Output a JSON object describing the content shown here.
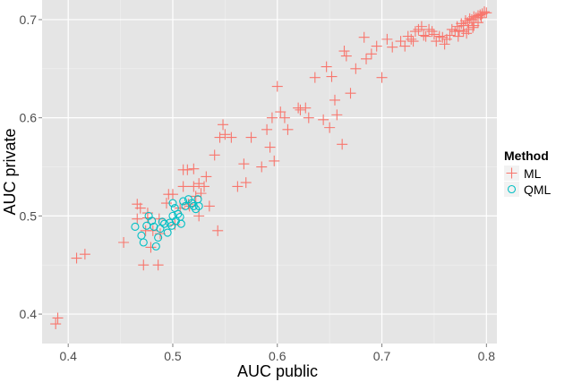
{
  "chart_data": {
    "type": "scatter",
    "xlabel": "AUC public",
    "ylabel": "AUC private",
    "xlim": [
      0.375,
      0.81
    ],
    "ylim": [
      0.37,
      0.72
    ],
    "x_ticks": [
      0.4,
      0.5,
      0.6,
      0.7,
      0.8
    ],
    "x_tick_labels": [
      "0.4",
      "0.5",
      "0.6",
      "0.7",
      "0.8"
    ],
    "y_ticks": [
      0.4,
      0.5,
      0.6,
      0.7
    ],
    "y_tick_labels": [
      "0.4",
      "0.5",
      "0.6",
      "0.7"
    ],
    "grid": true,
    "legend": {
      "title": "Method",
      "position": "right"
    },
    "series": [
      {
        "name": "ML",
        "marker": "plus",
        "color": "#F8766D",
        "points": [
          [
            0.388,
            0.39
          ],
          [
            0.39,
            0.396
          ],
          [
            0.408,
            0.457
          ],
          [
            0.416,
            0.461
          ],
          [
            0.453,
            0.473
          ],
          [
            0.466,
            0.497
          ],
          [
            0.466,
            0.512
          ],
          [
            0.469,
            0.508
          ],
          [
            0.472,
            0.45
          ],
          [
            0.474,
            0.485
          ],
          [
            0.476,
            0.503
          ],
          [
            0.476,
            0.498
          ],
          [
            0.479,
            0.468
          ],
          [
            0.481,
            0.485
          ],
          [
            0.486,
            0.45
          ],
          [
            0.487,
            0.497
          ],
          [
            0.488,
            0.482
          ],
          [
            0.494,
            0.513
          ],
          [
            0.496,
            0.522
          ],
          [
            0.5,
            0.522
          ],
          [
            0.502,
            0.491
          ],
          [
            0.507,
            0.508
          ],
          [
            0.51,
            0.547
          ],
          [
            0.51,
            0.53
          ],
          [
            0.514,
            0.547
          ],
          [
            0.515,
            0.512
          ],
          [
            0.516,
            0.51
          ],
          [
            0.52,
            0.53
          ],
          [
            0.52,
            0.548
          ],
          [
            0.522,
            0.52
          ],
          [
            0.525,
            0.533
          ],
          [
            0.525,
            0.5
          ],
          [
            0.527,
            0.523
          ],
          [
            0.53,
            0.53
          ],
          [
            0.532,
            0.54
          ],
          [
            0.535,
            0.51
          ],
          [
            0.54,
            0.562
          ],
          [
            0.543,
            0.485
          ],
          [
            0.545,
            0.58
          ],
          [
            0.548,
            0.593
          ],
          [
            0.55,
            0.583
          ],
          [
            0.556,
            0.58
          ],
          [
            0.562,
            0.53
          ],
          [
            0.568,
            0.553
          ],
          [
            0.57,
            0.534
          ],
          [
            0.575,
            0.58
          ],
          [
            0.585,
            0.55
          ],
          [
            0.59,
            0.588
          ],
          [
            0.593,
            0.57
          ],
          [
            0.595,
            0.6
          ],
          [
            0.597,
            0.556
          ],
          [
            0.6,
            0.632
          ],
          [
            0.603,
            0.606
          ],
          [
            0.607,
            0.6
          ],
          [
            0.61,
            0.588
          ],
          [
            0.62,
            0.61
          ],
          [
            0.622,
            0.608
          ],
          [
            0.627,
            0.61
          ],
          [
            0.63,
            0.6
          ],
          [
            0.636,
            0.641
          ],
          [
            0.644,
            0.598
          ],
          [
            0.647,
            0.652
          ],
          [
            0.65,
            0.59
          ],
          [
            0.652,
            0.642
          ],
          [
            0.655,
            0.618
          ],
          [
            0.657,
            0.603
          ],
          [
            0.662,
            0.573
          ],
          [
            0.664,
            0.668
          ],
          [
            0.666,
            0.663
          ],
          [
            0.67,
            0.625
          ],
          [
            0.675,
            0.65
          ],
          [
            0.683,
            0.682
          ],
          [
            0.685,
            0.66
          ],
          [
            0.69,
            0.665
          ],
          [
            0.695,
            0.673
          ],
          [
            0.7,
            0.641
          ],
          [
            0.705,
            0.68
          ],
          [
            0.71,
            0.672
          ],
          [
            0.718,
            0.678
          ],
          [
            0.722,
            0.673
          ],
          [
            0.725,
            0.683
          ],
          [
            0.728,
            0.68
          ],
          [
            0.73,
            0.678
          ],
          [
            0.732,
            0.688
          ],
          [
            0.735,
            0.69
          ],
          [
            0.738,
            0.693
          ],
          [
            0.74,
            0.684
          ],
          [
            0.742,
            0.683
          ],
          [
            0.745,
            0.69
          ],
          [
            0.748,
            0.688
          ],
          [
            0.75,
            0.685
          ],
          [
            0.752,
            0.678
          ],
          [
            0.755,
            0.683
          ],
          [
            0.758,
            0.682
          ],
          [
            0.76,
            0.675
          ],
          [
            0.762,
            0.68
          ],
          [
            0.765,
            0.684
          ],
          [
            0.767,
            0.69
          ],
          [
            0.77,
            0.688
          ],
          [
            0.772,
            0.693
          ],
          [
            0.774,
            0.689
          ],
          [
            0.776,
            0.696
          ],
          [
            0.778,
            0.694
          ],
          [
            0.78,
            0.699
          ],
          [
            0.782,
            0.697
          ],
          [
            0.784,
            0.701
          ],
          [
            0.786,
            0.7
          ],
          [
            0.788,
            0.703
          ],
          [
            0.79,
            0.702
          ],
          [
            0.792,
            0.704
          ],
          [
            0.794,
            0.705
          ],
          [
            0.796,
            0.706
          ],
          [
            0.798,
            0.708
          ],
          [
            0.8,
            0.707
          ],
          [
            0.788,
            0.694
          ],
          [
            0.783,
            0.69
          ],
          [
            0.778,
            0.688
          ],
          [
            0.792,
            0.697
          ],
          [
            0.773,
            0.683
          ],
          [
            0.781,
            0.686
          ],
          [
            0.787,
            0.692
          ],
          [
            0.795,
            0.702
          ]
        ]
      },
      {
        "name": "QML",
        "marker": "circle",
        "color": "#00BFC4",
        "points": [
          [
            0.464,
            0.489
          ],
          [
            0.47,
            0.48
          ],
          [
            0.472,
            0.473
          ],
          [
            0.475,
            0.49
          ],
          [
            0.477,
            0.5
          ],
          [
            0.48,
            0.495
          ],
          [
            0.482,
            0.489
          ],
          [
            0.484,
            0.469
          ],
          [
            0.486,
            0.478
          ],
          [
            0.488,
            0.487
          ],
          [
            0.49,
            0.494
          ],
          [
            0.492,
            0.492
          ],
          [
            0.495,
            0.483
          ],
          [
            0.497,
            0.493
          ],
          [
            0.499,
            0.49
          ],
          [
            0.5,
            0.513
          ],
          [
            0.5,
            0.5
          ],
          [
            0.502,
            0.508
          ],
          [
            0.503,
            0.495
          ],
          [
            0.505,
            0.502
          ],
          [
            0.507,
            0.499
          ],
          [
            0.508,
            0.492
          ],
          [
            0.51,
            0.515
          ],
          [
            0.512,
            0.51
          ],
          [
            0.515,
            0.517
          ],
          [
            0.518,
            0.513
          ],
          [
            0.52,
            0.51
          ],
          [
            0.522,
            0.507
          ],
          [
            0.524,
            0.517
          ],
          [
            0.525,
            0.51
          ]
        ]
      }
    ]
  }
}
